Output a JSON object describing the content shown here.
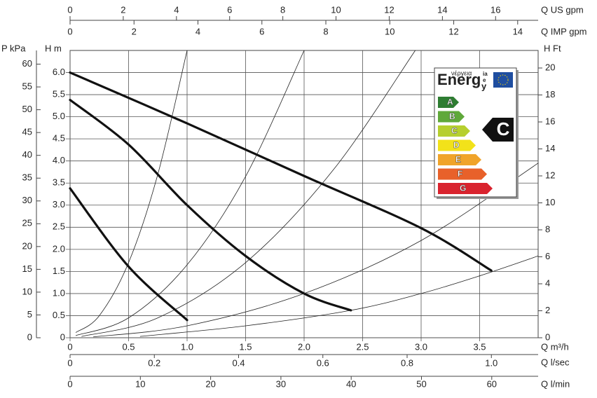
{
  "chart_data": {
    "type": "line",
    "xlabel": "Q m³/h",
    "xlim": [
      0,
      4
    ],
    "xticks": [
      0,
      0.5,
      {
        "value": 1,
        "label": "1.0"
      },
      1.5,
      {
        "value": 2,
        "label": "2.0"
      },
      2.5,
      {
        "value": 3,
        "label": "3.0"
      },
      3.5
    ],
    "ylabel": "H m",
    "ylim": [
      0,
      6.5
    ],
    "yticks": [
      0,
      0.5,
      {
        "value": 1,
        "label": "1.0"
      },
      1.5,
      {
        "value": 2,
        "label": "2.0"
      },
      2.5,
      {
        "value": 3,
        "label": "3.0"
      },
      3.5,
      {
        "value": 4,
        "label": "4.0"
      },
      4.5,
      {
        "value": 5,
        "label": "5.0"
      },
      5.5,
      {
        "value": 6,
        "label": "6.0"
      }
    ],
    "grid": true,
    "secondary_axes": [
      {
        "title": "P kPa",
        "side": "left",
        "lim": [
          0,
          63
        ],
        "ticks": [
          0,
          5,
          10,
          15,
          20,
          25,
          30,
          35,
          40,
          45,
          50,
          55,
          60
        ]
      },
      {
        "title": "H Ft",
        "side": "right",
        "lim": [
          0,
          21.3
        ],
        "ticks": [
          0,
          2,
          4,
          6,
          8,
          10,
          12,
          14,
          16,
          18,
          20
        ]
      },
      {
        "title": "Q US gpm",
        "side": "top",
        "lim": [
          0,
          17.6
        ],
        "ticks": [
          0,
          2,
          4,
          6,
          8,
          10,
          12,
          14,
          16
        ]
      },
      {
        "title": "Q IMP gpm",
        "side": "top2",
        "lim": [
          0,
          14.64
        ],
        "ticks": [
          0,
          2,
          4,
          6,
          8,
          10,
          12,
          14
        ]
      },
      {
        "title": "Q l/sec",
        "side": "bottom2",
        "lim": [
          0,
          1.111
        ],
        "ticks": [
          0,
          0.2,
          0.4,
          0.6,
          0.8,
          {
            "value": 1,
            "label": "1.0"
          }
        ]
      },
      {
        "title": "Q l/min",
        "side": "bottom3",
        "lim": [
          0,
          66.6
        ],
        "ticks": [
          0,
          10,
          20,
          30,
          40,
          50,
          60
        ]
      }
    ],
    "series": [
      {
        "color": "#111111",
        "width": 3.2,
        "x": [
          0,
          1,
          2,
          3,
          3.6
        ],
        "values": [
          6.0,
          4.85,
          3.66,
          2.48,
          1.52
        ]
      },
      {
        "color": "#111111",
        "width": 3.2,
        "x": [
          0,
          0.5,
          1,
          1.5,
          2,
          2.4
        ],
        "values": [
          5.38,
          4.37,
          3.0,
          1.85,
          1.0,
          0.62
        ]
      },
      {
        "color": "#111111",
        "width": 3.2,
        "x": [
          0,
          0.5,
          1
        ],
        "values": [
          3.38,
          1.61,
          0.4
        ]
      },
      {
        "color": "#222222",
        "width": 0.8,
        "x": [
          0.05,
          0.25,
          0.5,
          0.75,
          1.0
        ],
        "values": [
          0.12,
          0.5,
          1.7,
          3.7,
          6.5
        ]
      },
      {
        "color": "#222222",
        "width": 0.8,
        "x": [
          0.05,
          0.5,
          1.0,
          1.5,
          2.0
        ],
        "values": [
          0.05,
          0.45,
          1.65,
          3.65,
          6.5
        ]
      },
      {
        "color": "#222222",
        "width": 0.8,
        "x": [
          0.1,
          0.75,
          1.5,
          2.25,
          2.95
        ],
        "values": [
          0.03,
          0.45,
          1.7,
          3.8,
          6.5
        ]
      },
      {
        "color": "#222222",
        "width": 0.8,
        "x": [
          0.2,
          1.0,
          2.0,
          3.0,
          4.0
        ],
        "values": [
          0.02,
          0.27,
          1.0,
          2.2,
          3.95
        ]
      },
      {
        "color": "#222222",
        "width": 0.8,
        "x": [
          0.6,
          1.5,
          2.4,
          3.0,
          3.5,
          4.0
        ],
        "values": [
          0.03,
          0.27,
          0.62,
          1.0,
          1.4,
          1.85
        ]
      }
    ],
    "energy_label": {
      "heading": "Energ",
      "heading_end": "y",
      "language_word": "νέργεια",
      "language_letters": [
        "ia",
        "e",
        "y"
      ],
      "classes": [
        "A",
        "B",
        "C",
        "D",
        "E",
        "F",
        "G"
      ],
      "rating": "C"
    }
  }
}
